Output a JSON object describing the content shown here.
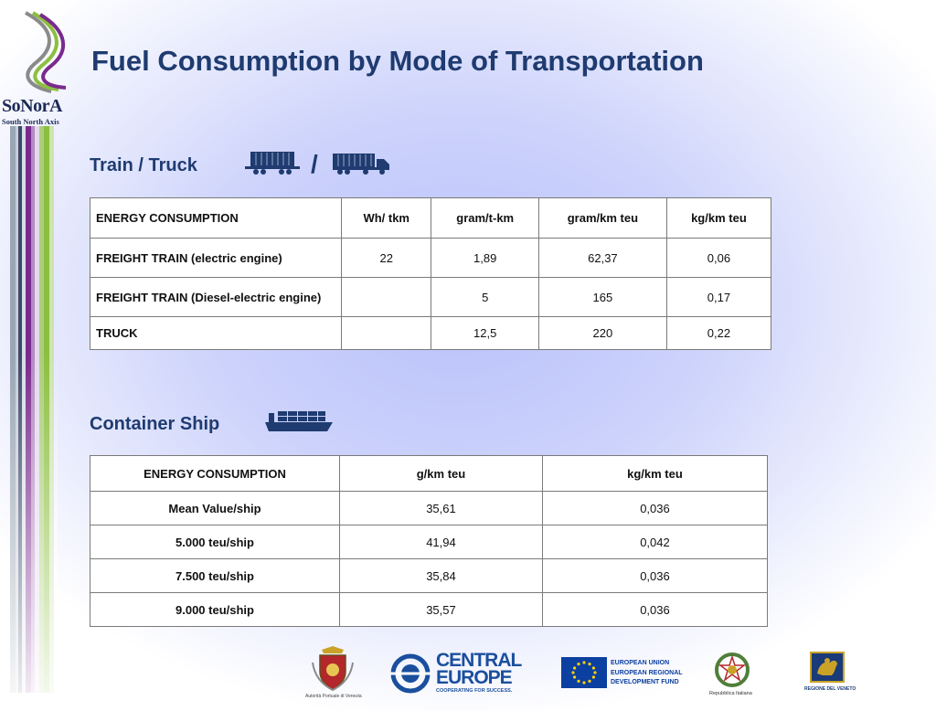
{
  "brand": {
    "name": "SoNorA",
    "tagline": "South North Axis"
  },
  "title": "Fuel Consumption by Mode of Transportation",
  "section1": {
    "heading": "Train / Truck",
    "slash": "/"
  },
  "table1": {
    "headers": [
      "ENERGY CONSUMPTION",
      "Wh/ tkm",
      "gram/t-km",
      "gram/km teu",
      "kg/km teu"
    ],
    "rows": [
      [
        "FREIGHT TRAIN (electric engine)",
        "22",
        "1,89",
        "62,37",
        "0,06"
      ],
      [
        "FREIGHT TRAIN (Diesel-electric engine)",
        "",
        "5",
        "165",
        "0,17"
      ],
      [
        "TRUCK",
        "",
        "12,5",
        "220",
        "0,22"
      ]
    ]
  },
  "section2": {
    "heading": "Container Ship"
  },
  "table2": {
    "headers": [
      "ENERGY CONSUMPTION",
      "g/km teu",
      "kg/km teu"
    ],
    "rows": [
      [
        "Mean Value/ship",
        "35,61",
        "0,036"
      ],
      [
        "5.000 teu/ship",
        "41,94",
        "0,042"
      ],
      [
        "7.500 teu/ship",
        "35,84",
        "0,036"
      ],
      [
        "9.000 teu/ship",
        "35,57",
        "0,036"
      ]
    ]
  },
  "footer": {
    "port_caption": "Autorità Portuale di Venezia",
    "ce_line1": "CENTRAL",
    "ce_line2": "EUROPE",
    "ce_tag": "COOPERATING FOR SUCCESS.",
    "eu_line1": "EUROPEAN UNION",
    "eu_line2": "EUROPEAN REGIONAL",
    "eu_line3": "DEVELOPMENT FUND",
    "it_caption": "Repubblica Italiana",
    "veneto_caption": "REGIONE DEL VENETO"
  },
  "colors": {
    "title": "#1f3b70",
    "stripe_purple": "#7a2a8c",
    "stripe_green": "#8cbf3f",
    "ce_blue": "#1a4f9e",
    "eu_blue": "#0b3fa0"
  }
}
